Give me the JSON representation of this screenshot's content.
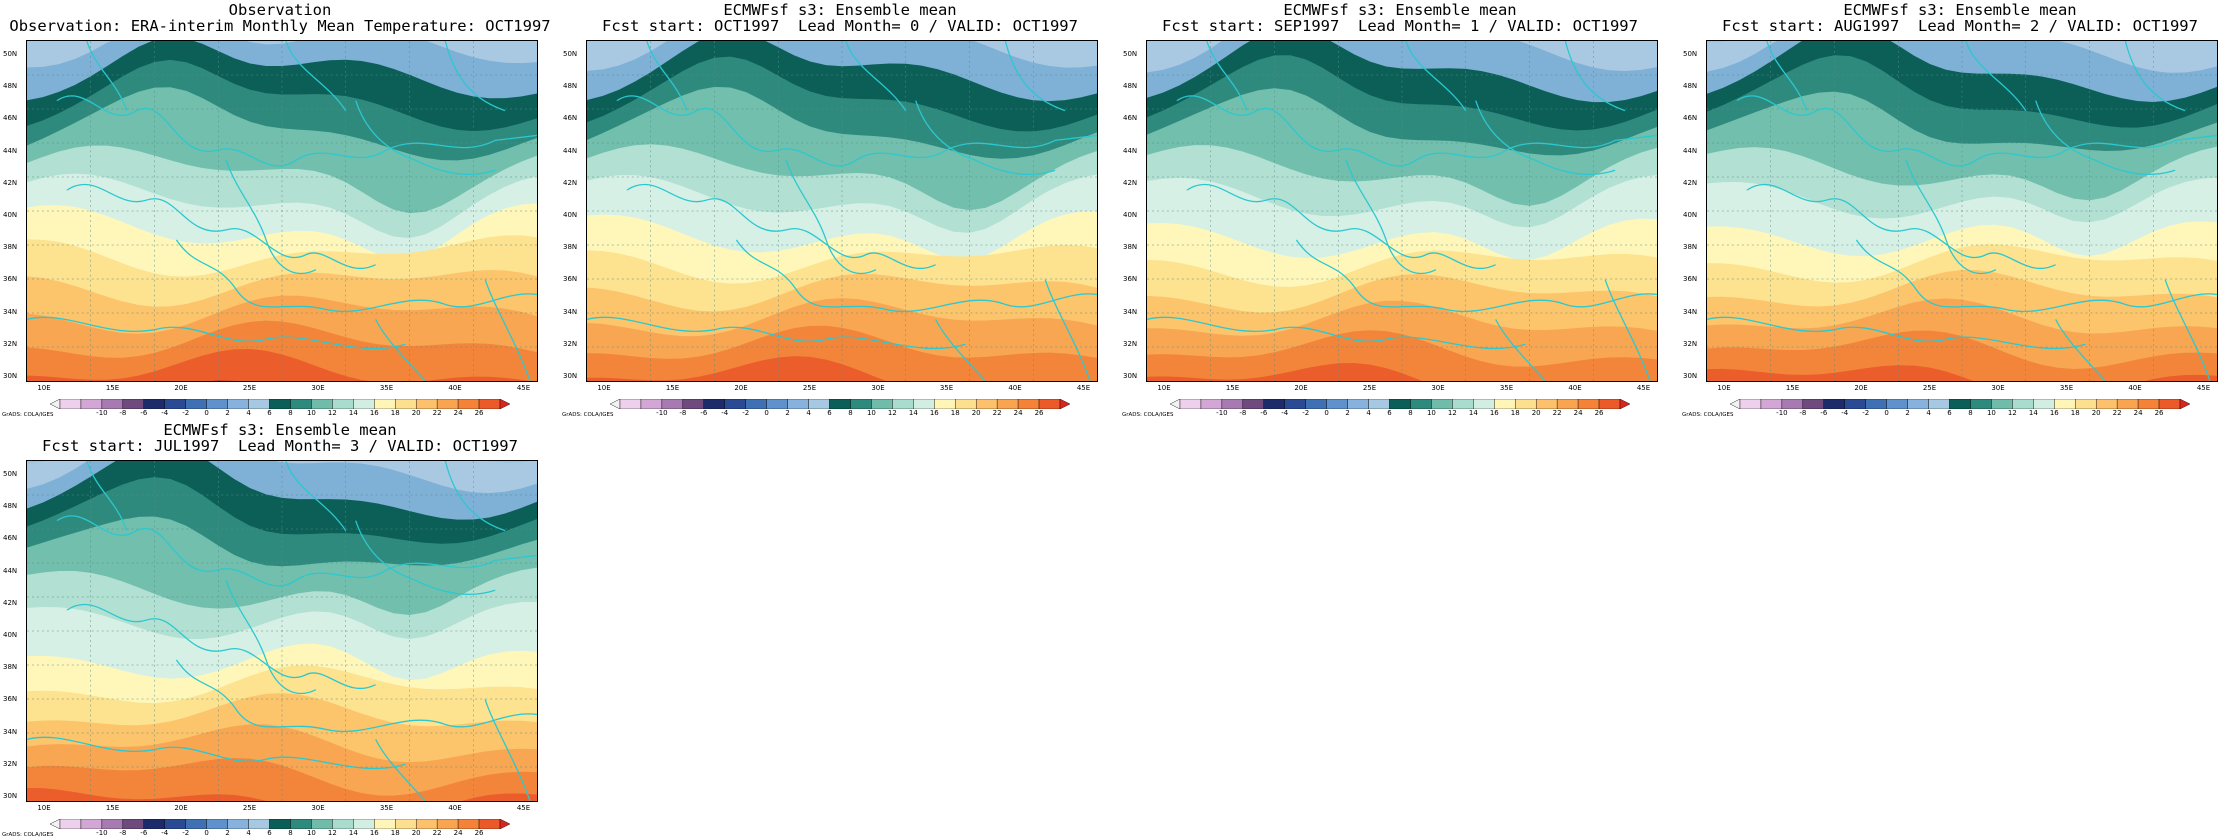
{
  "panels": [
    {
      "title_line1": "Observation",
      "title_line2": "Observation: ERA-interim Monthly Mean Temperature: OCT1997",
      "variant": 0
    },
    {
      "title_line1": "ECMWFsf s3: Ensemble mean",
      "title_line2": "Fcst start: OCT1997  Lead Month= 0 / VALID: OCT1997",
      "variant": 1
    },
    {
      "title_line1": "ECMWFsf s3: Ensemble mean",
      "title_line2": "Fcst start: SEP1997  Lead Month= 1 / VALID: OCT1997",
      "variant": 2
    },
    {
      "title_line1": "ECMWFsf s3: Ensemble mean",
      "title_line2": "Fcst start: AUG1997  Lead Month= 2 / VALID: OCT1997",
      "variant": 3
    },
    {
      "title_line1": "ECMWFsf s3: Ensemble mean",
      "title_line2": "Fcst start: JUL1997  Lead Month= 3 / VALID: OCT1997",
      "variant": 4
    }
  ],
  "axes": {
    "lat_labels": [
      "50N",
      "48N",
      "46N",
      "44N",
      "42N",
      "40N",
      "38N",
      "36N",
      "34N",
      "32N",
      "30N"
    ],
    "lon_labels": [
      "10E",
      "15E",
      "20E",
      "25E",
      "30E",
      "35E",
      "40E",
      "45E"
    ],
    "lat_range": [
      30,
      51
    ],
    "lon_range": [
      8,
      45.5
    ]
  },
  "colorbar": {
    "labels": [
      "-10",
      "-8",
      "-6",
      "-4",
      "-2",
      "0",
      "2",
      "4",
      "6",
      "8",
      "10",
      "12",
      "14",
      "16",
      "18",
      "20",
      "22",
      "24",
      "26"
    ],
    "colors": [
      "#f2f2f2",
      "#ecd0ec",
      "#d2a7d6",
      "#a77bb2",
      "#6e4a7e",
      "#1d2b6b",
      "#2a4a94",
      "#3f70b4",
      "#5f92cc",
      "#87b2dd",
      "#a7c8e2",
      "#0b5f58",
      "#2f8a7e",
      "#6fbcaa",
      "#a9dccc",
      "#d2eee2",
      "#fff5b8",
      "#fde08f",
      "#fcc16a",
      "#f9a451",
      "#f58236",
      "#ed5a2a",
      "#d8261e"
    ],
    "credit": "GrADS: COLA/IGES"
  }
}
